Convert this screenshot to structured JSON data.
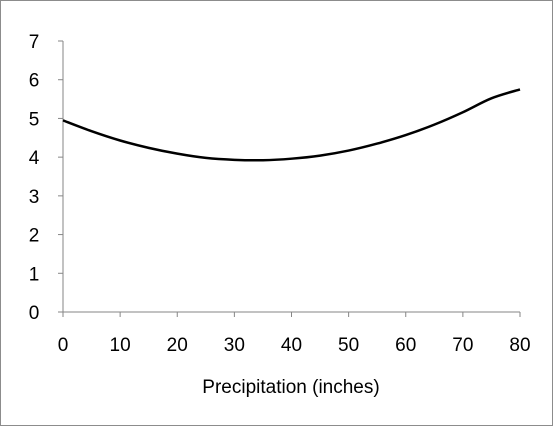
{
  "chart_data": {
    "type": "line",
    "title": "",
    "xlabel": "Precipitation (inches)",
    "ylabel": "",
    "xlim": [
      0,
      80
    ],
    "ylim": [
      0,
      7
    ],
    "x_ticks": [
      0,
      10,
      20,
      30,
      40,
      50,
      60,
      70,
      80
    ],
    "y_ticks": [
      0,
      1,
      2,
      3,
      4,
      5,
      6,
      7
    ],
    "grid": false,
    "legend": "none",
    "series": [
      {
        "color": "#000000",
        "x": [
          0,
          5,
          10,
          15,
          20,
          25,
          30,
          35,
          40,
          45,
          50,
          55,
          60,
          65,
          70,
          75,
          80
        ],
        "y": [
          4.95,
          4.67,
          4.43,
          4.24,
          4.09,
          3.98,
          3.93,
          3.92,
          3.96,
          4.04,
          4.17,
          4.35,
          4.57,
          4.84,
          5.16,
          5.52,
          5.75
        ]
      }
    ]
  }
}
